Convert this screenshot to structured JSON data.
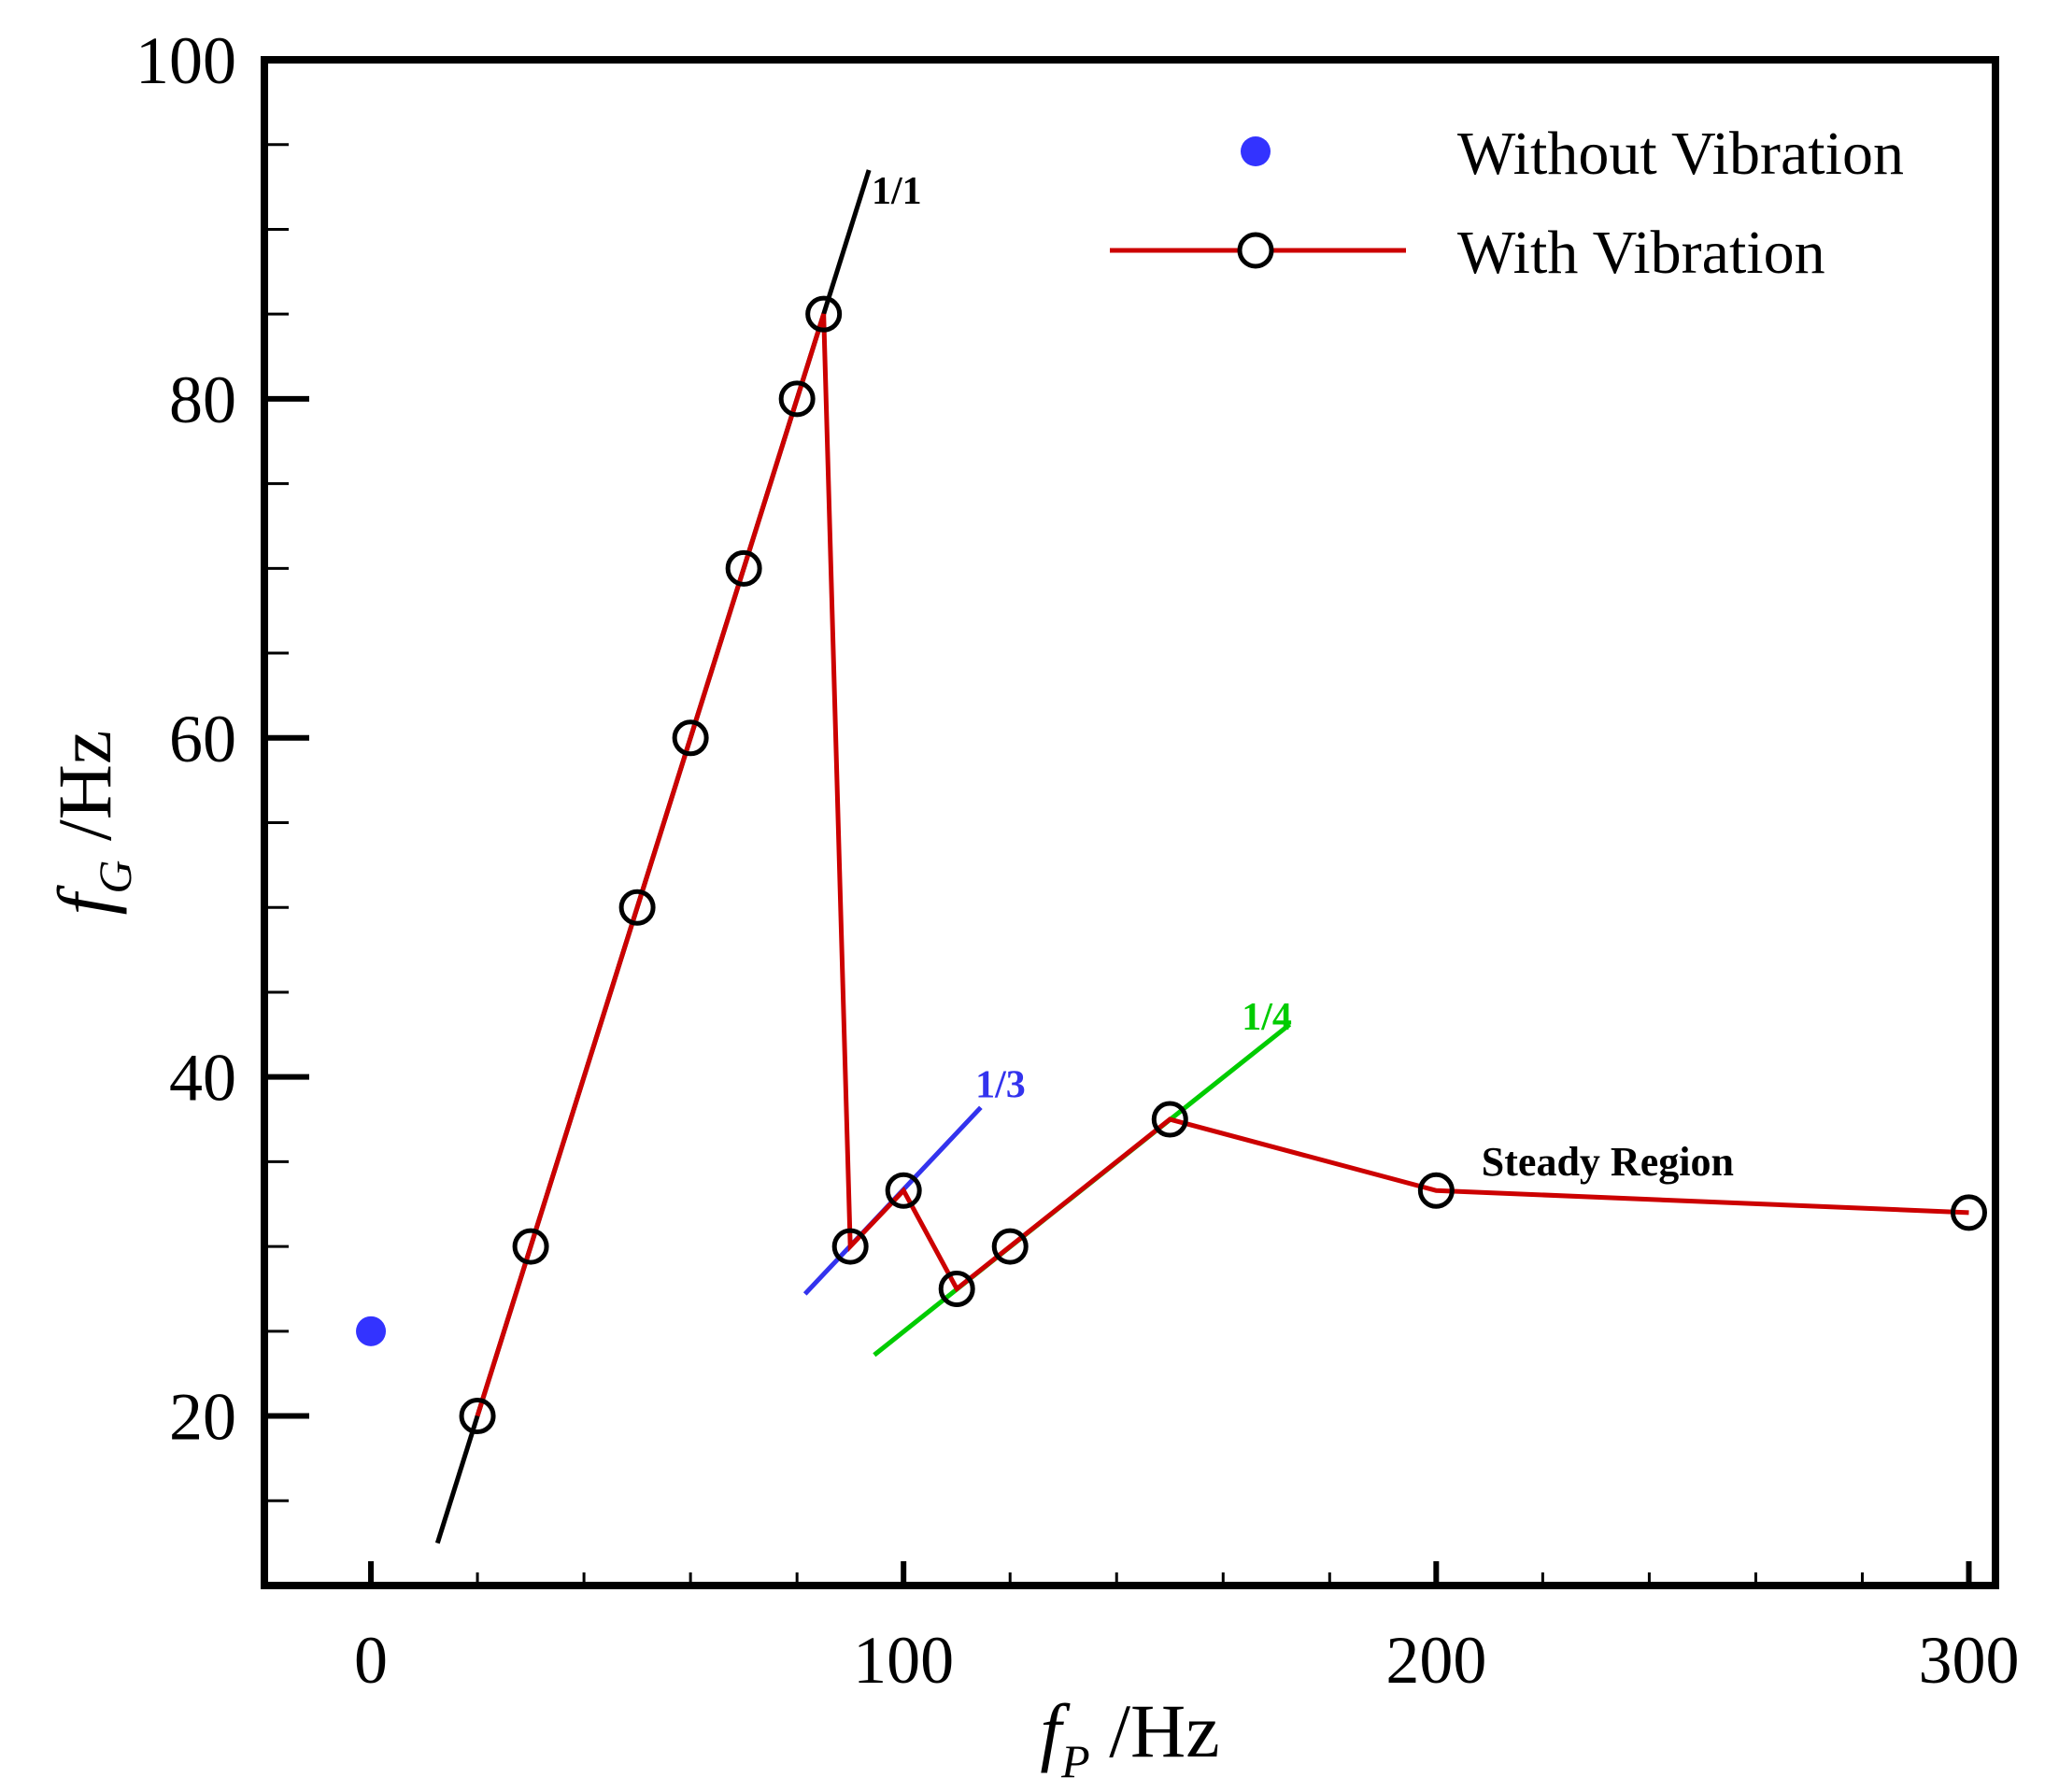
{
  "chart_data": {
    "type": "line",
    "title": "",
    "xlabel": {
      "var": "f",
      "sub": "P",
      "unit": " /Hz"
    },
    "ylabel": {
      "var": "f",
      "sub": "G",
      "unit": " /Hz"
    },
    "xlim": [
      -20,
      305
    ],
    "ylim": [
      10,
      100
    ],
    "x_ticks": [
      0,
      100,
      200,
      300
    ],
    "x_minor_ticks": [
      20,
      40,
      60,
      80,
      120,
      140,
      160,
      180,
      220,
      240,
      260,
      280
    ],
    "y_ticks": [
      20,
      40,
      60,
      80,
      100
    ],
    "y_minor_ticks": [
      15,
      25,
      30,
      35,
      45,
      50,
      55,
      65,
      70,
      75,
      85,
      90,
      95
    ],
    "grid": false,
    "legend_position": "top-right",
    "series": [
      {
        "name": "Without Vibration",
        "style": "filled-marker",
        "color": "#3333ff",
        "x": [
          0
        ],
        "y": [
          25
        ]
      },
      {
        "name": "With Vibration",
        "style": "line-open-marker",
        "line_color": "#cc0000",
        "marker_color": "#000000",
        "x": [
          20,
          30,
          50,
          60,
          70,
          80,
          85,
          90,
          100,
          110,
          120,
          150,
          200,
          300
        ],
        "y": [
          20,
          30,
          50,
          60,
          70,
          80,
          85,
          30,
          33.3,
          27.5,
          30,
          37.5,
          33.3,
          32
        ]
      }
    ],
    "reference_lines": [
      {
        "label": "1/1",
        "color": "#000000",
        "x": [
          12.5,
          93.5
        ],
        "y": [
          12.5,
          93.5
        ],
        "label_at": [
          94,
          91.5
        ]
      },
      {
        "label": "1/3",
        "color": "#3333ee",
        "x": [
          81.5,
          114.5
        ],
        "y": [
          27.2,
          38.2
        ],
        "label_at": [
          113.5,
          38.8
        ]
      },
      {
        "label": "1/4",
        "color": "#00cc00",
        "x": [
          94.5,
          172.5
        ],
        "y": [
          23.6,
          43.1
        ],
        "label_at": [
          163.5,
          42.8
        ]
      }
    ],
    "annotations": [
      {
        "text": "Steady Region",
        "at": [
          208.5,
          34.2
        ]
      }
    ]
  }
}
